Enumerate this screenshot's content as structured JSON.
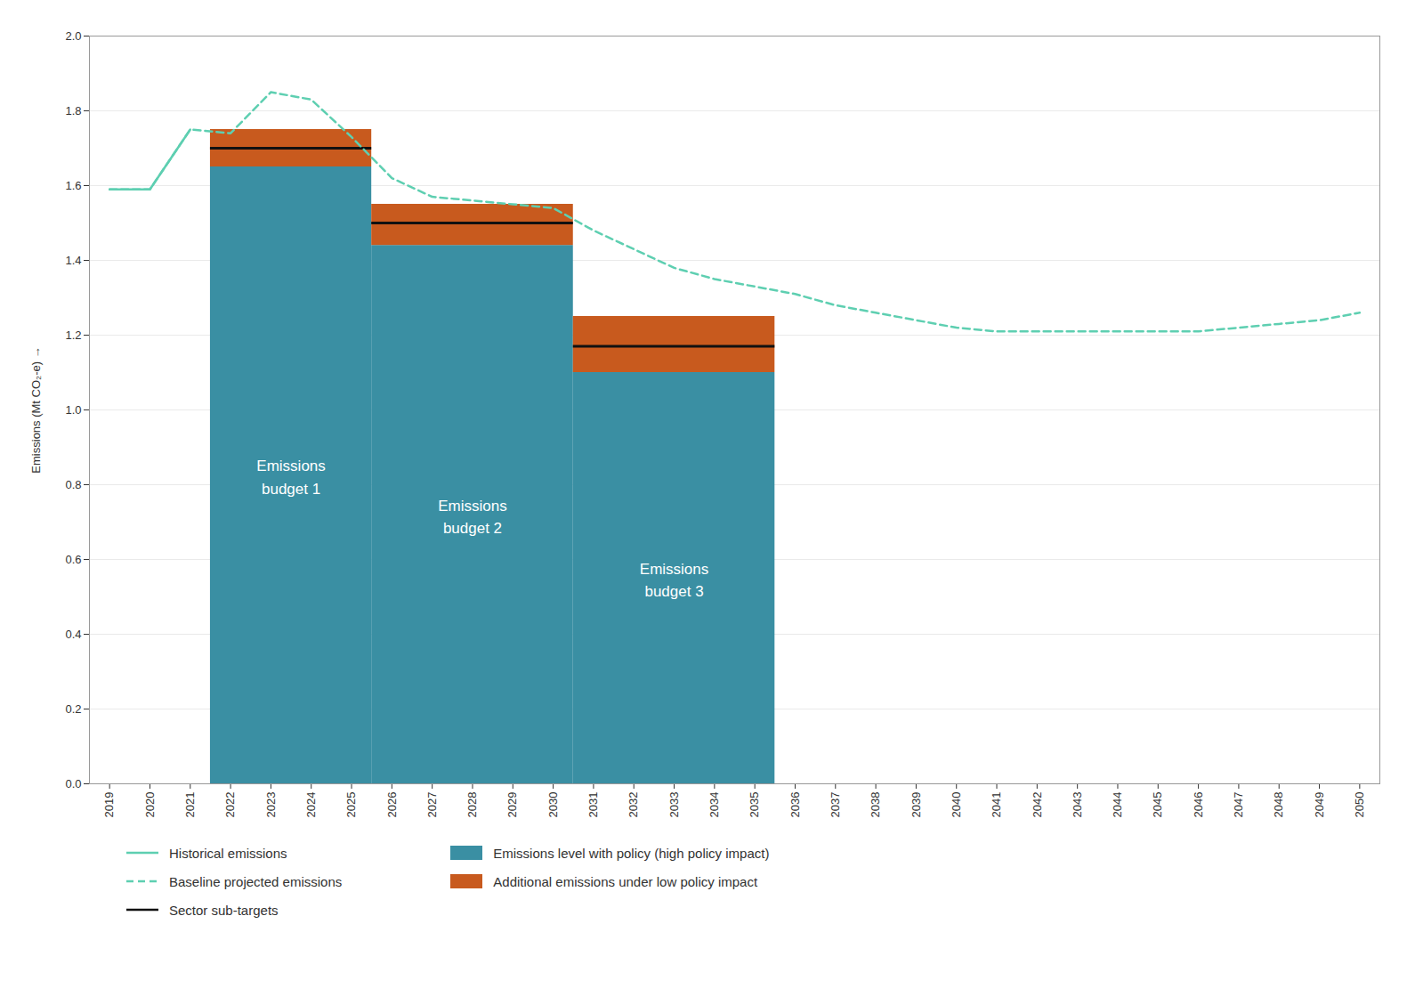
{
  "chart_data": {
    "type": "combo",
    "ylabel": "Emissions (Mt CO₂-e)",
    "xlim": [
      2018.5,
      2050.5
    ],
    "xticks": [
      2019,
      2020,
      2021,
      2022,
      2023,
      2024,
      2025,
      2026,
      2027,
      2028,
      2029,
      2030,
      2031,
      2032,
      2033,
      2034,
      2035,
      2036,
      2037,
      2038,
      2039,
      2040,
      2041,
      2042,
      2043,
      2044,
      2045,
      2046,
      2047,
      2048,
      2049,
      2050
    ],
    "ylim": [
      0.0,
      2.0
    ],
    "yticks": [
      {
        "value": 0.0,
        "label": "0.0"
      },
      0.2,
      0.4,
      0.6,
      0.8,
      {
        "value": 1.0,
        "label": "1.0"
      },
      1.2,
      1.4,
      1.6,
      1.8,
      {
        "value": 2.0,
        "label": "2.0"
      }
    ],
    "grid": true,
    "legend": "bottom",
    "stacked": true,
    "annotations": [
      "Emissions\nbudget 1",
      "Emissions\nbudget 2",
      "Emissions\nbudget 3"
    ],
    "series": [
      {
        "name": "Historical emissions",
        "type": "line",
        "color": "#5ecfb1",
        "line_style": "solid",
        "x": [
          2019,
          2020,
          2021
        ],
        "values": [
          1.59,
          1.59,
          1.75
        ]
      },
      {
        "name": "Baseline projected emissions",
        "type": "line",
        "color": "#5ecfb1",
        "line_style": "dashed",
        "x": [
          2019,
          2020,
          2021,
          2022,
          2023,
          2024,
          2025,
          2026,
          2027,
          2028,
          2029,
          2030,
          2031,
          2032,
          2033,
          2034,
          2035,
          2036,
          2037,
          2038,
          2039,
          2040,
          2041,
          2042,
          2043,
          2044,
          2045,
          2046,
          2047,
          2048,
          2049,
          2050
        ],
        "values": [
          1.59,
          1.59,
          1.75,
          1.74,
          1.85,
          1.83,
          1.73,
          1.62,
          1.57,
          1.56,
          1.55,
          1.54,
          1.48,
          1.43,
          1.38,
          1.35,
          1.33,
          1.31,
          1.28,
          1.26,
          1.24,
          1.22,
          1.21,
          1.21,
          1.21,
          1.21,
          1.21,
          1.21,
          1.22,
          1.23,
          1.24,
          1.26
        ]
      },
      {
        "name": "Sector sub-targets",
        "type": "rule",
        "color": "#111111",
        "line_style": "solid",
        "x_start": [
          2021.5,
          2025.5,
          2030.5
        ],
        "x_end": [
          2025.5,
          2030.5,
          2035.5
        ],
        "values": [
          1.7,
          1.5,
          1.17
        ]
      },
      {
        "name": "Emissions level with policy (high policy impact)",
        "type": "bar",
        "color": "#3a8fa3",
        "x_start": [
          2021.5,
          2025.5,
          2030.5
        ],
        "x_end": [
          2025.5,
          2030.5,
          2035.5
        ],
        "values": [
          1.65,
          1.44,
          1.1
        ]
      },
      {
        "name": "Additional emissions under low policy impact",
        "type": "bar",
        "color": "#c85a1e",
        "x_start": [
          2021.5,
          2025.5,
          2030.5
        ],
        "x_end": [
          2025.5,
          2030.5,
          2035.5
        ],
        "values": [
          0.1,
          0.11,
          0.15
        ]
      }
    ]
  }
}
